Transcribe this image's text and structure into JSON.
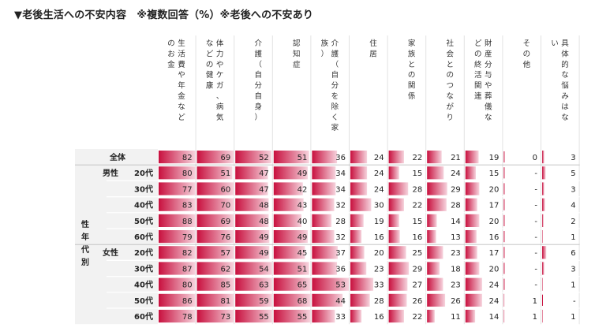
{
  "title": "▼老後生活への不安内容　※複数回答（%）※老後への不安あり",
  "chart_data": {
    "type": "table",
    "columns": [
      "生活費や年金などのお金",
      "体力やケガ、病気などの健康",
      "介護（自分自身）",
      "認知症",
      "介護（自分を除く家族）",
      "住居",
      "家族との関係",
      "社会とのつながり",
      "財産分与や葬儀などの終活関連",
      "その他",
      "具体的な悩みはない"
    ],
    "column_lines": [
      [
        "生活費や年金など",
        "のお金"
      ],
      [
        "体力やケガ、病気",
        "などの健康"
      ],
      [
        "介護（自分自身）"
      ],
      [
        "認知症"
      ],
      [
        "介護（自分を除く家",
        "族）"
      ],
      [
        "住居"
      ],
      [
        "家族との関係"
      ],
      [
        "社会とのつながり"
      ],
      [
        "財産分与や葬儀な",
        "どの終活関連"
      ],
      [
        "その他"
      ],
      [
        "具体的な悩みはな",
        "い"
      ]
    ],
    "group_label": "性年代別",
    "rows": [
      {
        "gender": "",
        "age": "全体",
        "values": [
          82,
          69,
          52,
          51,
          36,
          24,
          22,
          21,
          19,
          0,
          3
        ]
      },
      {
        "gender": "男性",
        "age": "20代",
        "values": [
          80,
          51,
          47,
          49,
          34,
          24,
          15,
          24,
          15,
          "-",
          5
        ]
      },
      {
        "gender": "",
        "age": "30代",
        "values": [
          77,
          60,
          47,
          42,
          34,
          24,
          28,
          29,
          20,
          "-",
          3
        ]
      },
      {
        "gender": "",
        "age": "40代",
        "values": [
          83,
          70,
          48,
          43,
          32,
          30,
          22,
          28,
          17,
          "-",
          4
        ]
      },
      {
        "gender": "",
        "age": "50代",
        "values": [
          88,
          69,
          48,
          40,
          28,
          19,
          15,
          14,
          20,
          "-",
          2
        ]
      },
      {
        "gender": "",
        "age": "60代",
        "values": [
          79,
          76,
          49,
          49,
          32,
          16,
          16,
          13,
          16,
          "-",
          1
        ]
      },
      {
        "gender": "女性",
        "age": "20代",
        "values": [
          82,
          57,
          49,
          45,
          37,
          20,
          25,
          23,
          17,
          "-",
          6
        ]
      },
      {
        "gender": "",
        "age": "30代",
        "values": [
          87,
          62,
          54,
          51,
          36,
          23,
          29,
          18,
          20,
          "-",
          3
        ]
      },
      {
        "gender": "",
        "age": "40代",
        "values": [
          80,
          85,
          63,
          65,
          53,
          33,
          27,
          23,
          24,
          "-",
          1
        ]
      },
      {
        "gender": "",
        "age": "50代",
        "values": [
          86,
          81,
          59,
          68,
          44,
          28,
          26,
          26,
          24,
          1,
          "-"
        ]
      },
      {
        "gender": "",
        "age": "60代",
        "values": [
          78,
          73,
          55,
          55,
          33,
          16,
          22,
          11,
          14,
          1,
          1
        ]
      }
    ],
    "colors": {
      "bar_dark": "#c8103e",
      "bar_light": "#f6d3dd",
      "label_bg": "#f2f2f2",
      "header_bg": "#ffffff"
    }
  }
}
